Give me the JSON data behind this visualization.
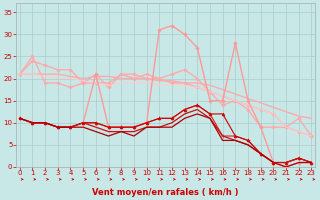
{
  "xlabel": "Vent moyen/en rafales ( km/h )",
  "xlabel_color": "#cc0000",
  "background_color": "#c8e8e8",
  "grid_color": "#aacccc",
  "x_values": [
    0,
    1,
    2,
    3,
    4,
    5,
    6,
    7,
    8,
    9,
    10,
    11,
    12,
    13,
    14,
    15,
    16,
    17,
    18,
    19,
    20,
    21,
    22,
    23
  ],
  "series": [
    {
      "y": [
        21,
        21,
        21,
        21,
        20.5,
        20,
        20.5,
        20.5,
        20,
        20,
        20,
        19.5,
        19.5,
        19,
        19,
        18.5,
        17.5,
        16.5,
        15.5,
        14.5,
        13.5,
        12.5,
        11.5,
        11
      ],
      "color": "#ffaaaa",
      "lw": 1.0,
      "marker": null
    },
    {
      "y": [
        21,
        24,
        23,
        22,
        22,
        19,
        19,
        19,
        21,
        21,
        20,
        20,
        19,
        19,
        18,
        17,
        16,
        15,
        14,
        13,
        12,
        9,
        8,
        7
      ],
      "color": "#ffaaaa",
      "lw": 1.0,
      "marker": "D",
      "ms": 1.8
    },
    {
      "y": [
        21,
        25,
        19,
        19,
        18,
        19,
        21,
        18,
        21,
        20,
        21,
        20,
        21,
        22,
        20,
        17,
        14,
        15,
        13,
        9,
        9,
        9,
        11,
        7
      ],
      "color": "#ffaaaa",
      "lw": 1.0,
      "marker": "D",
      "ms": 1.8
    },
    {
      "y": [
        21,
        21,
        20.5,
        20,
        20,
        19.5,
        19,
        18.5,
        19,
        19,
        19,
        18.5,
        18.5,
        18.5,
        18,
        17,
        16,
        15,
        14,
        13,
        12,
        9,
        8,
        7
      ],
      "color": "#ffcccc",
      "lw": 0.8,
      "marker": null
    },
    {
      "y": [
        11,
        10,
        10,
        9,
        9,
        10,
        21,
        9,
        9,
        9,
        10,
        31,
        32,
        30,
        27,
        15,
        15,
        28,
        15,
        9,
        1,
        0,
        1,
        1
      ],
      "color": "#ff9999",
      "lw": 1.0,
      "marker": "D",
      "ms": 1.8
    },
    {
      "y": [
        11,
        10,
        10,
        9,
        9,
        10,
        10,
        9,
        9,
        9,
        10,
        11,
        11,
        13,
        14,
        12,
        7,
        7,
        6,
        3,
        1,
        1,
        2,
        1
      ],
      "color": "#dd2222",
      "lw": 0.8,
      "marker": "+",
      "ms": 3
    },
    {
      "y": [
        11,
        10,
        10,
        9,
        9,
        10,
        10,
        9,
        9,
        9,
        10,
        11,
        11,
        13,
        14,
        12,
        12,
        7,
        6,
        3,
        1,
        1,
        2,
        1
      ],
      "color": "#cc0000",
      "lw": 0.8,
      "marker": "^",
      "ms": 2
    },
    {
      "y": [
        11,
        10,
        10,
        9,
        9,
        10,
        9,
        8,
        8,
        8,
        9,
        9,
        10,
        12,
        13,
        11,
        7,
        6,
        5,
        3,
        1,
        1,
        2,
        1
      ],
      "color": "#cc1111",
      "lw": 0.9,
      "marker": null
    },
    {
      "y": [
        11,
        10,
        10,
        9,
        9,
        9,
        8,
        7,
        8,
        7,
        9,
        9,
        9,
        11,
        12,
        11,
        6,
        6,
        5,
        3,
        1,
        0,
        1,
        1
      ],
      "color": "#aa0000",
      "lw": 0.9,
      "marker": null
    }
  ],
  "ylim": [
    0,
    37
  ],
  "xlim": [
    -0.3,
    23.3
  ],
  "yticks": [
    0,
    5,
    10,
    15,
    20,
    25,
    30,
    35
  ],
  "xticks": [
    0,
    1,
    2,
    3,
    4,
    5,
    6,
    7,
    8,
    9,
    10,
    11,
    12,
    13,
    14,
    15,
    16,
    17,
    18,
    19,
    20,
    21,
    22,
    23
  ],
  "tick_color": "#cc0000",
  "tick_labelsize": 5.0,
  "xlabel_fontsize": 6.0
}
